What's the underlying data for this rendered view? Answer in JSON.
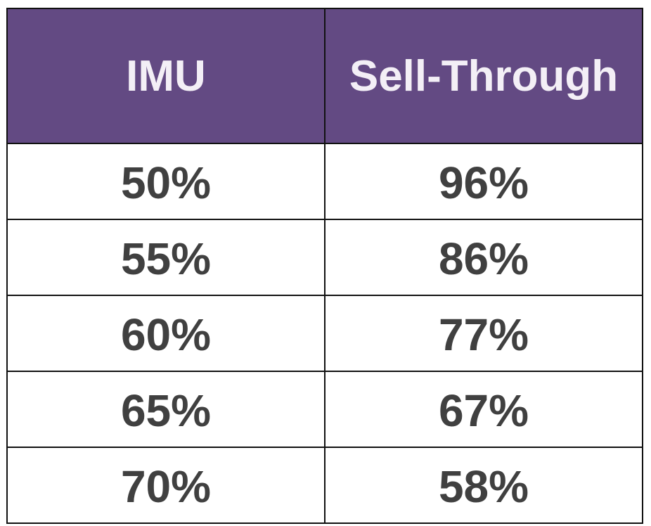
{
  "table": {
    "header": [
      "IMU",
      "Sell-Through"
    ],
    "rows": [
      [
        "50%",
        "96%"
      ],
      [
        "55%",
        "86%"
      ],
      [
        "60%",
        "77%"
      ],
      [
        "65%",
        "67%"
      ],
      [
        "70%",
        "58%"
      ]
    ]
  }
}
